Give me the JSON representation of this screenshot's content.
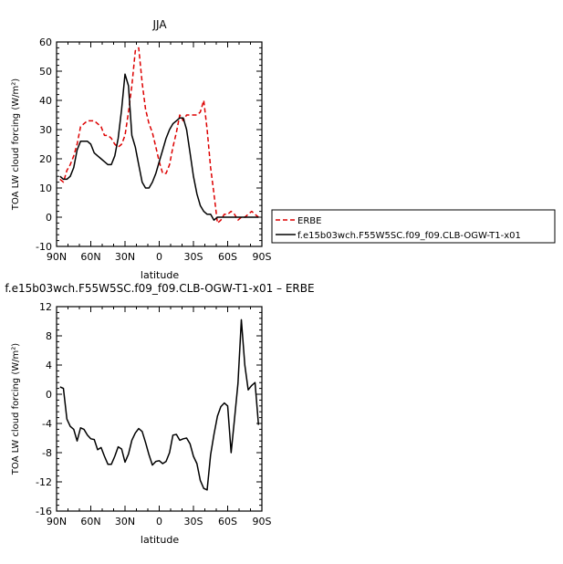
{
  "chart_data": [
    {
      "type": "line",
      "title": "JJA",
      "xlabel": "latitude",
      "ylabel": "TOA LW cloud forcing (W/m²)",
      "xlim": [
        90,
        -90
      ],
      "ylim": [
        -10,
        60
      ],
      "x_ticks": [
        90,
        60,
        30,
        0,
        -30,
        -60,
        -90
      ],
      "x_tick_labels": [
        "90N",
        "60N",
        "30N",
        "0",
        "30S",
        "60S",
        "90S"
      ],
      "y_ticks": [
        -10,
        0,
        10,
        20,
        30,
        40,
        50,
        60
      ],
      "y_tick_labels": [
        "-10",
        "0",
        "10",
        "20",
        "30",
        "40",
        "50",
        "60"
      ],
      "legend": "right",
      "series": [
        {
          "name": "ERBE",
          "color": "#dd0000",
          "dash": "dashed",
          "x": [
            87,
            84,
            81,
            78,
            75,
            72,
            69,
            66,
            63,
            60,
            57,
            54,
            51,
            48,
            45,
            42,
            39,
            36,
            33,
            30,
            27,
            24,
            21,
            18,
            15,
            12,
            9,
            6,
            3,
            0,
            -3,
            -6,
            -9,
            -12,
            -15,
            -18,
            -21,
            -24,
            -27,
            -30,
            -33,
            -36,
            -39,
            -42,
            -45,
            -48,
            -51,
            -54,
            -57,
            -60,
            -63,
            -66,
            -69,
            -72,
            -75,
            -78,
            -81,
            -84,
            -87
          ],
          "y": [
            13,
            12,
            16,
            18,
            21,
            25,
            31,
            32,
            33,
            33,
            33,
            32,
            31,
            28,
            28,
            27,
            25,
            24,
            25,
            28,
            36,
            45,
            57,
            58,
            46,
            37,
            32,
            29,
            24,
            19,
            15,
            15,
            18,
            24,
            29,
            35,
            33,
            35,
            35,
            35,
            35,
            36,
            40,
            30,
            17,
            8,
            -2,
            -1,
            1,
            1,
            2,
            1,
            -1,
            0,
            0,
            1,
            2,
            1,
            0
          ]
        },
        {
          "name": "f.e15b03wch.F55W5SC.f09_f09.CLB-OGW-T1-x01",
          "color": "#000000",
          "dash": "solid",
          "x": [
            87,
            84,
            81,
            78,
            75,
            72,
            69,
            66,
            63,
            60,
            57,
            54,
            51,
            48,
            45,
            42,
            39,
            36,
            33,
            30,
            27,
            24,
            21,
            18,
            15,
            12,
            9,
            6,
            3,
            0,
            -3,
            -6,
            -9,
            -12,
            -15,
            -18,
            -21,
            -24,
            -27,
            -30,
            -33,
            -36,
            -39,
            -42,
            -45,
            -48,
            -51,
            -54,
            -57,
            -60,
            -63,
            -66,
            -69,
            -72,
            -75,
            -78,
            -81,
            -84,
            -87
          ],
          "y": [
            14,
            13,
            13,
            14,
            17,
            23,
            26,
            26,
            26,
            25,
            22,
            21,
            20,
            19,
            18,
            18,
            21,
            27,
            37,
            49,
            45,
            28,
            24,
            18,
            12,
            10,
            10,
            12,
            15,
            19,
            23,
            27,
            30,
            32,
            33,
            34,
            34,
            30,
            22,
            14,
            8,
            4,
            2,
            1,
            1,
            -1,
            0,
            0,
            0,
            0,
            0,
            0,
            0,
            0,
            0,
            0,
            0,
            0,
            0
          ]
        }
      ]
    },
    {
      "type": "line",
      "title": "f.e15b03wch.F55W5SC.f09_f09.CLB-OGW-T1-x01 – ERBE",
      "xlabel": "latitude",
      "ylabel": "TOA LW cloud forcing (W/m²)",
      "xlim": [
        90,
        -90
      ],
      "ylim": [
        -16,
        12
      ],
      "x_ticks": [
        90,
        60,
        30,
        0,
        -30,
        -60,
        -90
      ],
      "x_tick_labels": [
        "90N",
        "60N",
        "30N",
        "0",
        "30S",
        "60S",
        "90S"
      ],
      "y_ticks": [
        -16,
        -12,
        -8,
        -4,
        0,
        4,
        8,
        12
      ],
      "y_tick_labels": [
        "-16",
        "-12",
        "-8",
        "-4",
        "0",
        "4",
        "8",
        "12"
      ],
      "series": [
        {
          "color": "#000000",
          "dash": "solid",
          "x": [
            87,
            84,
            81,
            78,
            75,
            72,
            69,
            66,
            63,
            60,
            57,
            54,
            51,
            48,
            45,
            42,
            39,
            36,
            33,
            30,
            27,
            24,
            21,
            18,
            15,
            12,
            9,
            6,
            3,
            0,
            -3,
            -6,
            -9,
            -12,
            -15,
            -18,
            -21,
            -24,
            -27,
            -30,
            -33,
            -36,
            -39,
            -42,
            -45,
            -48,
            -51,
            -54,
            -57,
            -60,
            -63,
            -66,
            -69,
            -72,
            -75,
            -78,
            -81,
            -84,
            -87
          ],
          "y": [
            1.0,
            0.8,
            -3.4,
            -4.4,
            -4.8,
            -6.4,
            -4.6,
            -4.8,
            -5.6,
            -6.1,
            -6.2,
            -7.6,
            -7.3,
            -8.5,
            -9.6,
            -9.6,
            -8.5,
            -7.2,
            -7.5,
            -9.3,
            -8.2,
            -6.3,
            -5.3,
            -4.7,
            -5.1,
            -6.6,
            -8.3,
            -9.7,
            -9.2,
            -9.1,
            -9.5,
            -9.2,
            -8.0,
            -5.6,
            -5.5,
            -6.3,
            -6.1,
            -6.0,
            -6.8,
            -8.5,
            -9.5,
            -11.8,
            -12.9,
            -13.1,
            -8.3,
            -5.5,
            -3.0,
            -1.7,
            -1.2,
            -1.6,
            -8.0,
            -3.4,
            1.5,
            10.2,
            4.0,
            0.6,
            1.2,
            1.6,
            -4.2
          ]
        }
      ]
    }
  ]
}
